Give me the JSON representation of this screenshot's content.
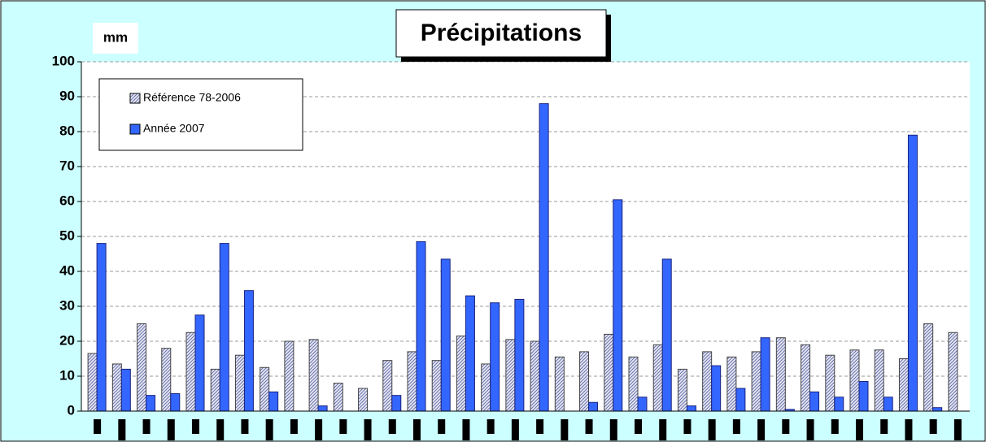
{
  "chart_data": {
    "type": "bar",
    "title": "Précipitations",
    "y_label": "mm",
    "categories": [
      null,
      null,
      null,
      null,
      null,
      null,
      null,
      null,
      null,
      null,
      null,
      null,
      null,
      null,
      null,
      null,
      null,
      null,
      null,
      null,
      null,
      null,
      null,
      null,
      null,
      null,
      null,
      null,
      null,
      null,
      null,
      null,
      null,
      null,
      null,
      null
    ],
    "series": [
      {
        "name": "Référence 78-2006",
        "color": "#c8cce8",
        "hatched": true,
        "values": [
          16.5,
          13.5,
          25,
          18,
          22.5,
          12,
          16,
          12.5,
          20,
          20.5,
          8,
          6.5,
          14.5,
          17,
          14.5,
          21.5,
          13.5,
          20.5,
          20,
          15.5,
          17,
          22,
          15.5,
          19,
          12,
          17,
          15.5,
          17,
          21,
          19,
          16,
          17.5,
          17.5,
          15,
          25,
          22.5
        ]
      },
      {
        "name": "Année 2007",
        "color": "#3366ff",
        "values": [
          48,
          12,
          4.5,
          5,
          27.5,
          48,
          34.5,
          5.5,
          0,
          1.5,
          0,
          0,
          4.5,
          48.5,
          43.5,
          33,
          31,
          32,
          88,
          0,
          2.5,
          60.5,
          4,
          43.5,
          1.5,
          13,
          6.5,
          21,
          0.5,
          5.5,
          4,
          8.5,
          4,
          79,
          1,
          null
        ]
      }
    ],
    "ylim": [
      0,
      100
    ],
    "yticks": [
      0,
      10,
      20,
      30,
      40,
      50,
      60,
      70,
      80,
      90,
      100
    ],
    "grid": true,
    "legend": "top-left"
  }
}
